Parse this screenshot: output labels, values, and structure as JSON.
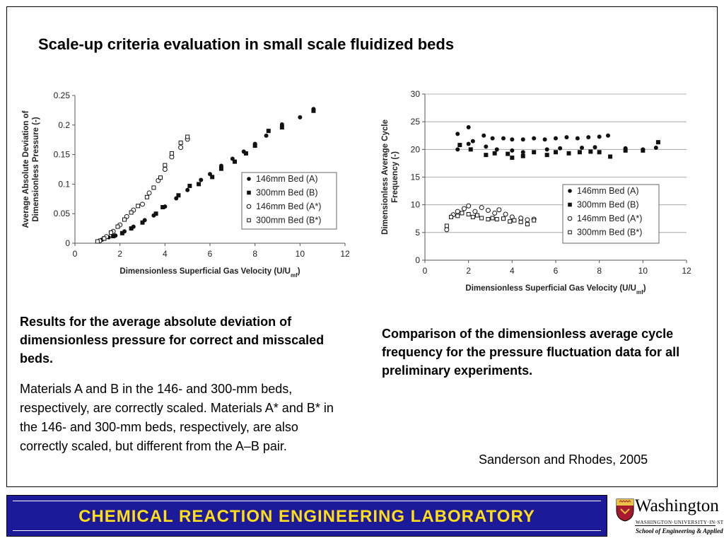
{
  "slide": {
    "title": "Scale-up criteria evaluation in small scale fluidized beds",
    "caption_left_bold": "Results for the average absolute deviation of dimensionless pressure for correct and misscaled beds.",
    "caption_left_body": "Materials A and B in the 146- and 300-mm beds, respectively, are correctly scaled. Materials A* and B* in the 146- and 300-mm beds, respectively, are also correctly scaled, but different from the A–B pair.",
    "caption_right_bold": "Comparison of the dimensionless average cycle frequency for the pressure fluctuation data for all preliminary experiments.",
    "citation": "Sanderson and Rhodes, 2005"
  },
  "footer": {
    "lab_name": "CHEMICAL  REACTION  ENGINEERING  LABORATORY",
    "bar_color": "#1d1a99",
    "text_color": "#ffde17"
  },
  "logo": {
    "wordmark": "Washington",
    "line2": "WASHINGTON·UNIVERSITY·IN·ST·LOUIS",
    "line3": "School of Engineering & Applied Science"
  },
  "chart_data": [
    {
      "type": "scatter",
      "ylabel_line1": "Average Absolute Deviation of",
      "ylabel_line2": "Dimensionless Pressure (-)",
      "xlabel_main": "Dimensionless Superficial Gas Velocity (U/U",
      "xlabel_sub": "mf",
      "xlabel_end": ")",
      "xlim": [
        0,
        12
      ],
      "ylim": [
        0,
        0.25
      ],
      "xticks": [
        "0",
        "2",
        "4",
        "6",
        "8",
        "10",
        "12"
      ],
      "yticks": [
        "0",
        "0.05",
        "0.1",
        "0.15",
        "0.2",
        "0.25"
      ],
      "grid": false,
      "legend_position": "right",
      "series": [
        {
          "name": "146mm Bed (A)",
          "marker": "filled-circle",
          "points": [
            [
              1.2,
              0.006
            ],
            [
              1.5,
              0.01
            ],
            [
              1.8,
              0.013
            ],
            [
              2.2,
              0.02
            ],
            [
              2.6,
              0.028
            ],
            [
              3.1,
              0.039
            ],
            [
              3.5,
              0.047
            ],
            [
              4.0,
              0.062
            ],
            [
              4.5,
              0.076
            ],
            [
              5.0,
              0.09
            ],
            [
              5.6,
              0.107
            ],
            [
              6.0,
              0.117
            ],
            [
              6.5,
              0.131
            ],
            [
              7.0,
              0.143
            ],
            [
              7.5,
              0.155
            ],
            [
              8.0,
              0.168
            ],
            [
              8.5,
              0.182
            ],
            [
              9.2,
              0.201
            ],
            [
              10.0,
              0.213
            ],
            [
              10.6,
              0.227
            ]
          ]
        },
        {
          "name": "300mm Bed (B)",
          "marker": "filled-square",
          "points": [
            [
              1.3,
              0.008
            ],
            [
              1.7,
              0.012
            ],
            [
              2.1,
              0.017
            ],
            [
              2.5,
              0.025
            ],
            [
              3.0,
              0.035
            ],
            [
              3.6,
              0.05
            ],
            [
              3.9,
              0.061
            ],
            [
              4.6,
              0.081
            ],
            [
              5.1,
              0.097
            ],
            [
              5.5,
              0.1
            ],
            [
              6.1,
              0.112
            ],
            [
              6.5,
              0.126
            ],
            [
              7.1,
              0.138
            ],
            [
              7.6,
              0.152
            ],
            [
              8.0,
              0.165
            ],
            [
              8.6,
              0.19
            ],
            [
              9.2,
              0.196
            ],
            [
              10.6,
              0.224
            ]
          ]
        },
        {
          "name": "146mm Bed (A*)",
          "marker": "open-circle",
          "points": [
            [
              1.1,
              0.004
            ],
            [
              1.4,
              0.011
            ],
            [
              1.7,
              0.02
            ],
            [
              2.0,
              0.031
            ],
            [
              2.3,
              0.045
            ],
            [
              2.6,
              0.056
            ],
            [
              3.0,
              0.066
            ],
            [
              3.3,
              0.085
            ],
            [
              3.7,
              0.106
            ],
            [
              4.0,
              0.125
            ],
            [
              4.3,
              0.146
            ],
            [
              4.7,
              0.162
            ],
            [
              5.0,
              0.176
            ]
          ]
        },
        {
          "name": "300mm Bed (B*)",
          "marker": "open-square",
          "points": [
            [
              1.0,
              0.003
            ],
            [
              1.3,
              0.008
            ],
            [
              1.6,
              0.018
            ],
            [
              1.9,
              0.028
            ],
            [
              2.2,
              0.04
            ],
            [
              2.5,
              0.052
            ],
            [
              2.8,
              0.063
            ],
            [
              3.2,
              0.078
            ],
            [
              3.5,
              0.094
            ],
            [
              3.8,
              0.111
            ],
            [
              4.0,
              0.132
            ],
            [
              4.3,
              0.152
            ],
            [
              4.7,
              0.17
            ],
            [
              5.0,
              0.18
            ]
          ]
        }
      ]
    },
    {
      "type": "scatter",
      "ylabel_line1": "Dimensionless Average Cycle",
      "ylabel_line2": "Frequency (-)",
      "xlabel_main": "Dimensionless Superficial Gas Velocity (U/U",
      "xlabel_sub": "mf",
      "xlabel_end": ")",
      "xlim": [
        0,
        12
      ],
      "ylim": [
        0,
        30
      ],
      "xticks": [
        "0",
        "2",
        "4",
        "6",
        "8",
        "10",
        "12"
      ],
      "yticks": [
        "0",
        "5",
        "10",
        "15",
        "20",
        "25",
        "30"
      ],
      "grid": "horizontal",
      "legend_position": "right",
      "series": [
        {
          "name": "146mm Bed (A)",
          "marker": "filled-circle",
          "points": [
            [
              1.5,
              22.8
            ],
            [
              2.0,
              24
            ],
            [
              2.2,
              21.5
            ],
            [
              2.7,
              22.5
            ],
            [
              3.1,
              22
            ],
            [
              3.6,
              22
            ],
            [
              4.0,
              21.8
            ],
            [
              4.5,
              21.8
            ],
            [
              5.0,
              22
            ],
            [
              5.5,
              21.8
            ],
            [
              6.0,
              22
            ],
            [
              6.5,
              22.2
            ],
            [
              7.0,
              22
            ],
            [
              7.5,
              22.2
            ],
            [
              8.0,
              22.3
            ],
            [
              8.4,
              22.5
            ],
            [
              1.5,
              20
            ],
            [
              2.0,
              21
            ],
            [
              2.8,
              20.5
            ],
            [
              3.3,
              20
            ],
            [
              4.0,
              19.8
            ],
            [
              4.5,
              19.5
            ],
            [
              5.6,
              20
            ],
            [
              6.2,
              20.2
            ],
            [
              7.2,
              20.3
            ],
            [
              7.8,
              20.4
            ],
            [
              9.2,
              20.2
            ],
            [
              10.0,
              20
            ],
            [
              10.6,
              20.3
            ]
          ]
        },
        {
          "name": "300mm Bed (B)",
          "marker": "filled-square",
          "points": [
            [
              1.6,
              20.8
            ],
            [
              2.1,
              20
            ],
            [
              2.8,
              19
            ],
            [
              3.2,
              19.3
            ],
            [
              3.8,
              19.2
            ],
            [
              4.0,
              18.5
            ],
            [
              4.5,
              18.8
            ],
            [
              5.0,
              19.5
            ],
            [
              5.6,
              19
            ],
            [
              6.0,
              19.5
            ],
            [
              6.6,
              19.3
            ],
            [
              7.1,
              19.5
            ],
            [
              7.6,
              19.6
            ],
            [
              8.0,
              19.5
            ],
            [
              8.5,
              18.7
            ],
            [
              9.2,
              19.8
            ],
            [
              10.0,
              19.8
            ],
            [
              10.7,
              21.3
            ]
          ]
        },
        {
          "name": "146mm Bed (A*)",
          "marker": "open-circle",
          "points": [
            [
              1.0,
              5.5
            ],
            [
              1.3,
              8.2
            ],
            [
              1.5,
              8.8
            ],
            [
              1.8,
              9.3
            ],
            [
              2.0,
              9.8
            ],
            [
              2.3,
              8.8
            ],
            [
              2.6,
              9.5
            ],
            [
              2.9,
              9.0
            ],
            [
              3.2,
              8.5
            ],
            [
              3.4,
              9.1
            ],
            [
              3.7,
              8.3
            ],
            [
              4.0,
              7.8
            ],
            [
              4.4,
              7.6
            ],
            [
              4.7,
              7.3
            ],
            [
              5.0,
              7.4
            ]
          ]
        },
        {
          "name": "300mm Bed (B*)",
          "marker": "open-square",
          "points": [
            [
              1.0,
              6.2
            ],
            [
              1.2,
              7.8
            ],
            [
              1.5,
              8.0
            ],
            [
              1.7,
              8.5
            ],
            [
              2.0,
              8.3
            ],
            [
              2.2,
              7.8
            ],
            [
              2.4,
              8.1
            ],
            [
              2.6,
              7.6
            ],
            [
              2.9,
              7.4
            ],
            [
              3.1,
              7.6
            ],
            [
              3.3,
              7.4
            ],
            [
              3.6,
              7.5
            ],
            [
              3.9,
              7.0
            ],
            [
              4.1,
              7.2
            ],
            [
              4.4,
              6.9
            ],
            [
              4.7,
              6.5
            ],
            [
              5.0,
              7.2
            ]
          ]
        }
      ]
    }
  ]
}
